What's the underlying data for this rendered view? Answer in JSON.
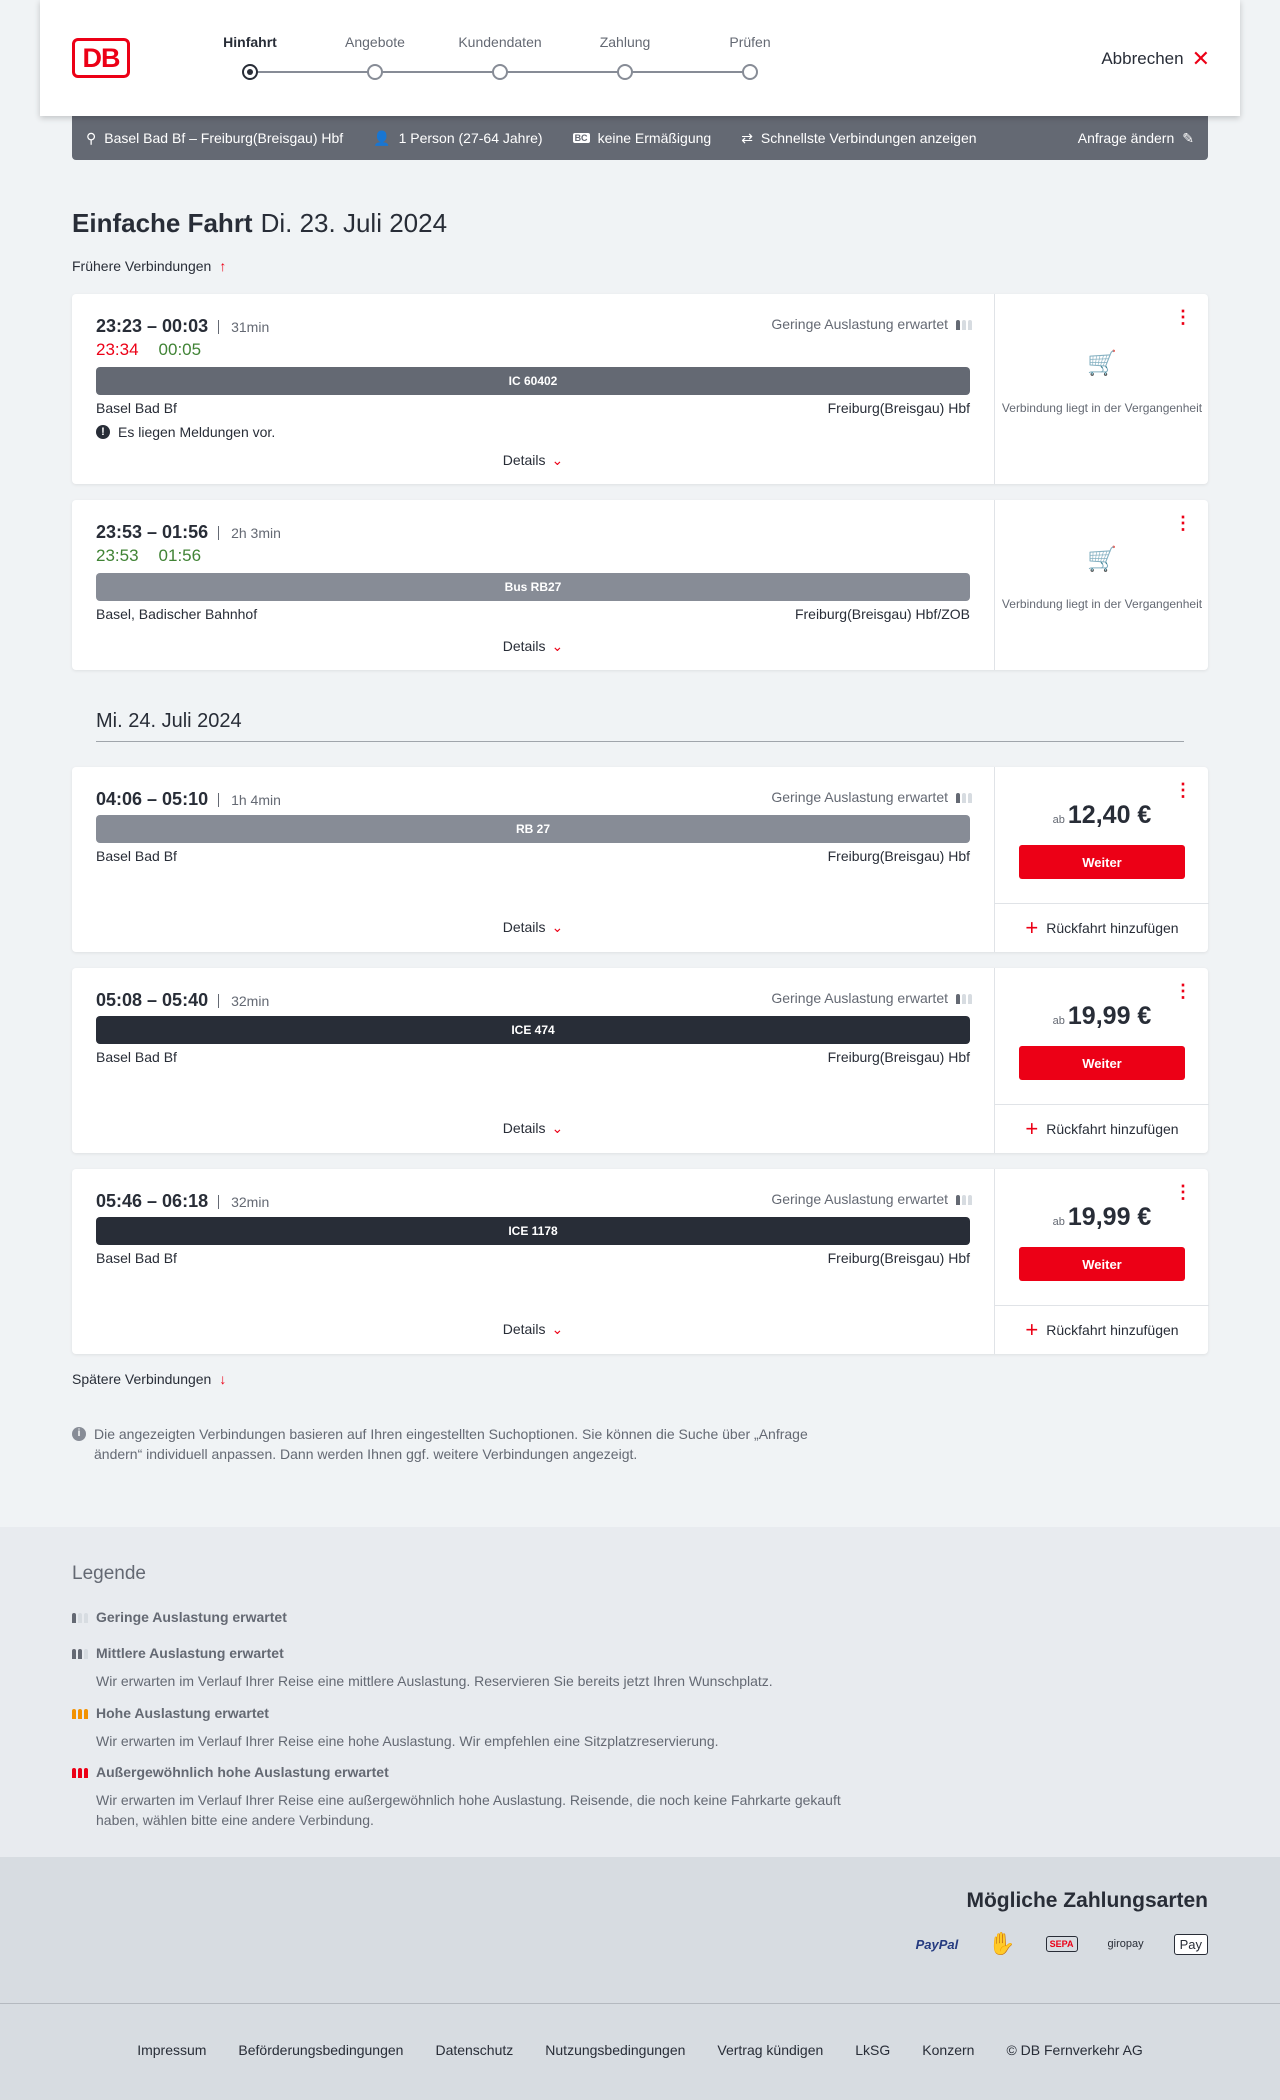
{
  "header": {
    "logo": "DB",
    "steps": [
      "Hinfahrt",
      "Angebote",
      "Kundendaten",
      "Zahlung",
      "Prüfen"
    ],
    "active_step": 0,
    "cancel": "Abbrechen"
  },
  "infobar": {
    "route": "Basel Bad Bf – Freiburg(Breisgau) Hbf",
    "persons": "1 Person (27-64 Jahre)",
    "discount": "keine Ermäßigung",
    "fastest": "Schnellste Verbindungen anzeigen",
    "edit": "Anfrage ändern"
  },
  "title": {
    "type": "Einfache Fahrt",
    "date": "Di. 23. Juli 2024"
  },
  "earlier": "Frühere Verbindungen",
  "later": "Spätere Verbindungen",
  "details_label": "Details",
  "past_label": "Verbindung liegt in der Vergangenheit",
  "weiter_label": "Weiter",
  "return_label": "Rückfahrt hinzufügen",
  "price_prefix": "ab",
  "occupancy_low": "Geringe Auslastung erwartet",
  "date2": "Mi. 24. Juli 2024",
  "connections": [
    {
      "times": "23:23 – 00:03",
      "duration": "31min",
      "rt_dep": "23:34",
      "rt_arr": "00:05",
      "train": "IC 60402",
      "from": "Basel Bad Bf",
      "to": "Freiburg(Breisgau) Hbf",
      "message": "Es liegen Meldungen vor."
    },
    {
      "times": "23:53 – 01:56",
      "duration": "2h 3min",
      "rt_dep": "23:53",
      "rt_arr": "01:56",
      "train": "Bus RB27",
      "from": "Basel, Badischer Bahnhof",
      "to": "Freiburg(Breisgau) Hbf/ZOB"
    },
    {
      "times": "04:06 – 05:10",
      "duration": "1h 4min",
      "train": "RB 27",
      "from": "Basel Bad Bf",
      "to": "Freiburg(Breisgau) Hbf",
      "price": "12,40 €"
    },
    {
      "times": "05:08 – 05:40",
      "duration": "32min",
      "train": "ICE 474",
      "from": "Basel Bad Bf",
      "to": "Freiburg(Breisgau) Hbf",
      "price": "19,99 €"
    },
    {
      "times": "05:46 – 06:18",
      "duration": "32min",
      "train": "ICE 1178",
      "from": "Basel Bad Bf",
      "to": "Freiburg(Breisgau) Hbf",
      "price": "19,99 €"
    }
  ],
  "note": "Die angezeigten Verbindungen basieren auf Ihren eingestellten Suchoptionen. Sie können die Suche über „Anfrage ändern“ individuell anpassen. Dann werden Ihnen ggf. weitere Verbindungen angezeigt.",
  "legend": {
    "title": "Legende",
    "items": [
      {
        "title": "Geringe Auslastung erwartet",
        "text": ""
      },
      {
        "title": "Mittlere Auslastung erwartet",
        "text": "Wir erwarten im Verlauf Ihrer Reise eine mittlere Auslastung. Reservieren Sie bereits jetzt Ihren Wunschplatz."
      },
      {
        "title": "Hohe Auslastung erwartet",
        "text": "Wir erwarten im Verlauf Ihrer Reise eine hohe Auslastung. Wir empfehlen eine Sitzplatzreservierung."
      },
      {
        "title": "Außergewöhnlich hohe Auslastung erwartet",
        "text": "Wir erwarten im Verlauf Ihrer Reise eine außergewöhnlich hohe Auslastung. Reisende, die noch keine Fahrkarte gekauft haben, wählen bitte eine andere Verbindung."
      }
    ]
  },
  "payment": {
    "title": "Mögliche Zahlungsarten",
    "methods": [
      "PayPal",
      "SEPA",
      "giropay",
      "Pay"
    ]
  },
  "footer": [
    "Impressum",
    "Beförderungsbedingungen",
    "Datenschutz",
    "Nutzungsbedingungen",
    "Vertrag kündigen",
    "LkSG",
    "Konzern",
    "© DB Fernverkehr AG"
  ],
  "colors": {
    "accent": "#ec0016",
    "delay": "#ec0016",
    "ontime": "#408335",
    "bar_ic": "#646973",
    "bar_regional": "#878c96",
    "bar_ice": "#282d37"
  }
}
